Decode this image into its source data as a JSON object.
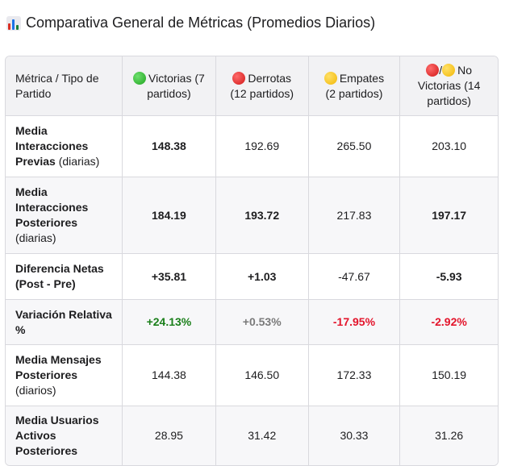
{
  "title": "Comparativa General de Métricas (Promedios Diarios)",
  "colors": {
    "positive": "#1a7f1a",
    "neutral": "#7a7a7a",
    "negative": "#e3142b"
  },
  "table": {
    "headers": [
      {
        "text": "Métrica / Tipo de Partido"
      },
      {
        "icon": "green-circle-icon",
        "text": "Victorias (7 partidos)"
      },
      {
        "icon": "red-circle-icon",
        "text": "Derrotas (12 partidos)"
      },
      {
        "icon": "yellow-circle-icon",
        "text": "Empates (2 partidos)"
      },
      {
        "icon": "red-yellow-circle-icons",
        "separator": "/",
        "text": "No Victorias (14 partidos)"
      }
    ],
    "rows": [
      {
        "metric": "Media Interacciones Previas",
        "unit": "(diarias)",
        "values": [
          "148.38",
          "192.69",
          "265.50",
          "203.10"
        ]
      },
      {
        "metric": "Media Interacciones Posteriores",
        "unit": "(diarias)",
        "values": [
          "184.19",
          "193.72",
          "217.83",
          "197.17"
        ]
      },
      {
        "metric": "Diferencia Netas (Post - Pre)",
        "unit": "",
        "values": [
          "+35.81",
          "+1.03",
          "-47.67",
          "-5.93"
        ]
      },
      {
        "metric": "Variación Relativa %",
        "unit": "",
        "values": [
          "+24.13%",
          "+0.53%",
          "-17.95%",
          "-2.92%"
        ]
      },
      {
        "metric": "Media Mensajes Posteriores",
        "unit": "(diarios)",
        "values": [
          "144.38",
          "146.50",
          "172.33",
          "150.19"
        ]
      },
      {
        "metric": "Media Usuarios Activos Posteriores",
        "unit": "",
        "values": [
          "28.95",
          "31.42",
          "30.33",
          "31.26"
        ]
      }
    ]
  }
}
